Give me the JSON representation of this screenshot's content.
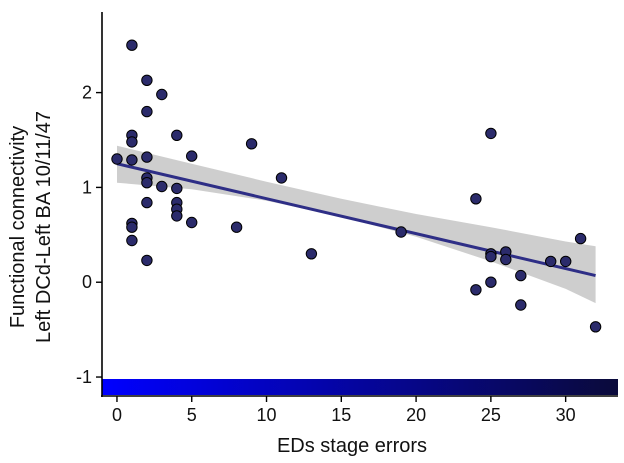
{
  "chart_data": {
    "type": "scatter",
    "title": "",
    "xlabel": "EDs stage errors",
    "ylabel_lines": [
      "Functional  connectivity",
      "Left  DCd-Left  BA  10/11/47"
    ],
    "xlim": [
      -1,
      33.5
    ],
    "ylim": [
      -1.2,
      2.85
    ],
    "xticks": [
      0,
      5,
      10,
      15,
      20,
      25,
      30
    ],
    "yticks": [
      -1,
      0,
      1,
      2
    ],
    "grid": false,
    "legend": "none",
    "point_color": "#2b2b6b",
    "point_edge_color": "#000000",
    "line_color": "#2e2e86",
    "band_color": "#bdbdbd",
    "colorbar": {
      "from": "#0000ff",
      "to": "#0a0a3a"
    },
    "points": [
      {
        "x": 0,
        "y": 1.3
      },
      {
        "x": 1,
        "y": 2.5
      },
      {
        "x": 1,
        "y": 1.55
      },
      {
        "x": 1,
        "y": 1.48
      },
      {
        "x": 1,
        "y": 1.29
      },
      {
        "x": 1,
        "y": 0.62
      },
      {
        "x": 1,
        "y": 0.58
      },
      {
        "x": 1,
        "y": 0.44
      },
      {
        "x": 2,
        "y": 2.13
      },
      {
        "x": 2,
        "y": 1.8
      },
      {
        "x": 2,
        "y": 1.32
      },
      {
        "x": 2,
        "y": 1.1
      },
      {
        "x": 2,
        "y": 1.05
      },
      {
        "x": 2,
        "y": 0.84
      },
      {
        "x": 2,
        "y": 0.23
      },
      {
        "x": 3,
        "y": 1.98
      },
      {
        "x": 3,
        "y": 1.01
      },
      {
        "x": 4,
        "y": 1.55
      },
      {
        "x": 4,
        "y": 0.99
      },
      {
        "x": 4,
        "y": 0.84
      },
      {
        "x": 4,
        "y": 0.77
      },
      {
        "x": 4,
        "y": 0.7
      },
      {
        "x": 5,
        "y": 1.33
      },
      {
        "x": 5,
        "y": 0.63
      },
      {
        "x": 8,
        "y": 0.58
      },
      {
        "x": 9,
        "y": 1.46
      },
      {
        "x": 11,
        "y": 1.1
      },
      {
        "x": 13,
        "y": 0.3
      },
      {
        "x": 19,
        "y": 0.53
      },
      {
        "x": 24,
        "y": 0.88
      },
      {
        "x": 24,
        "y": -0.08
      },
      {
        "x": 25,
        "y": 1.57
      },
      {
        "x": 25,
        "y": 0.3
      },
      {
        "x": 25,
        "y": 0.27
      },
      {
        "x": 25,
        "y": 0.0
      },
      {
        "x": 26,
        "y": 0.32
      },
      {
        "x": 26,
        "y": 0.24
      },
      {
        "x": 27,
        "y": 0.07
      },
      {
        "x": 27,
        "y": -0.24
      },
      {
        "x": 29,
        "y": 0.22
      },
      {
        "x": 30,
        "y": 0.22
      },
      {
        "x": 31,
        "y": 0.46
      },
      {
        "x": 32,
        "y": -0.47
      }
    ],
    "regression": {
      "x": [
        0,
        32
      ],
      "y": [
        1.25,
        0.07
      ]
    },
    "confidence_band": [
      {
        "x": 0,
        "lower": 1.05,
        "upper": 1.44
      },
      {
        "x": 5,
        "lower": 0.98,
        "upper": 1.25
      },
      {
        "x": 10,
        "lower": 0.86,
        "upper": 1.06
      },
      {
        "x": 15,
        "lower": 0.69,
        "upper": 0.88
      },
      {
        "x": 20,
        "lower": 0.48,
        "upper": 0.72
      },
      {
        "x": 25,
        "lower": 0.22,
        "upper": 0.58
      },
      {
        "x": 30,
        "lower": -0.07,
        "upper": 0.43
      },
      {
        "x": 32,
        "lower": -0.22,
        "upper": 0.38
      }
    ]
  }
}
